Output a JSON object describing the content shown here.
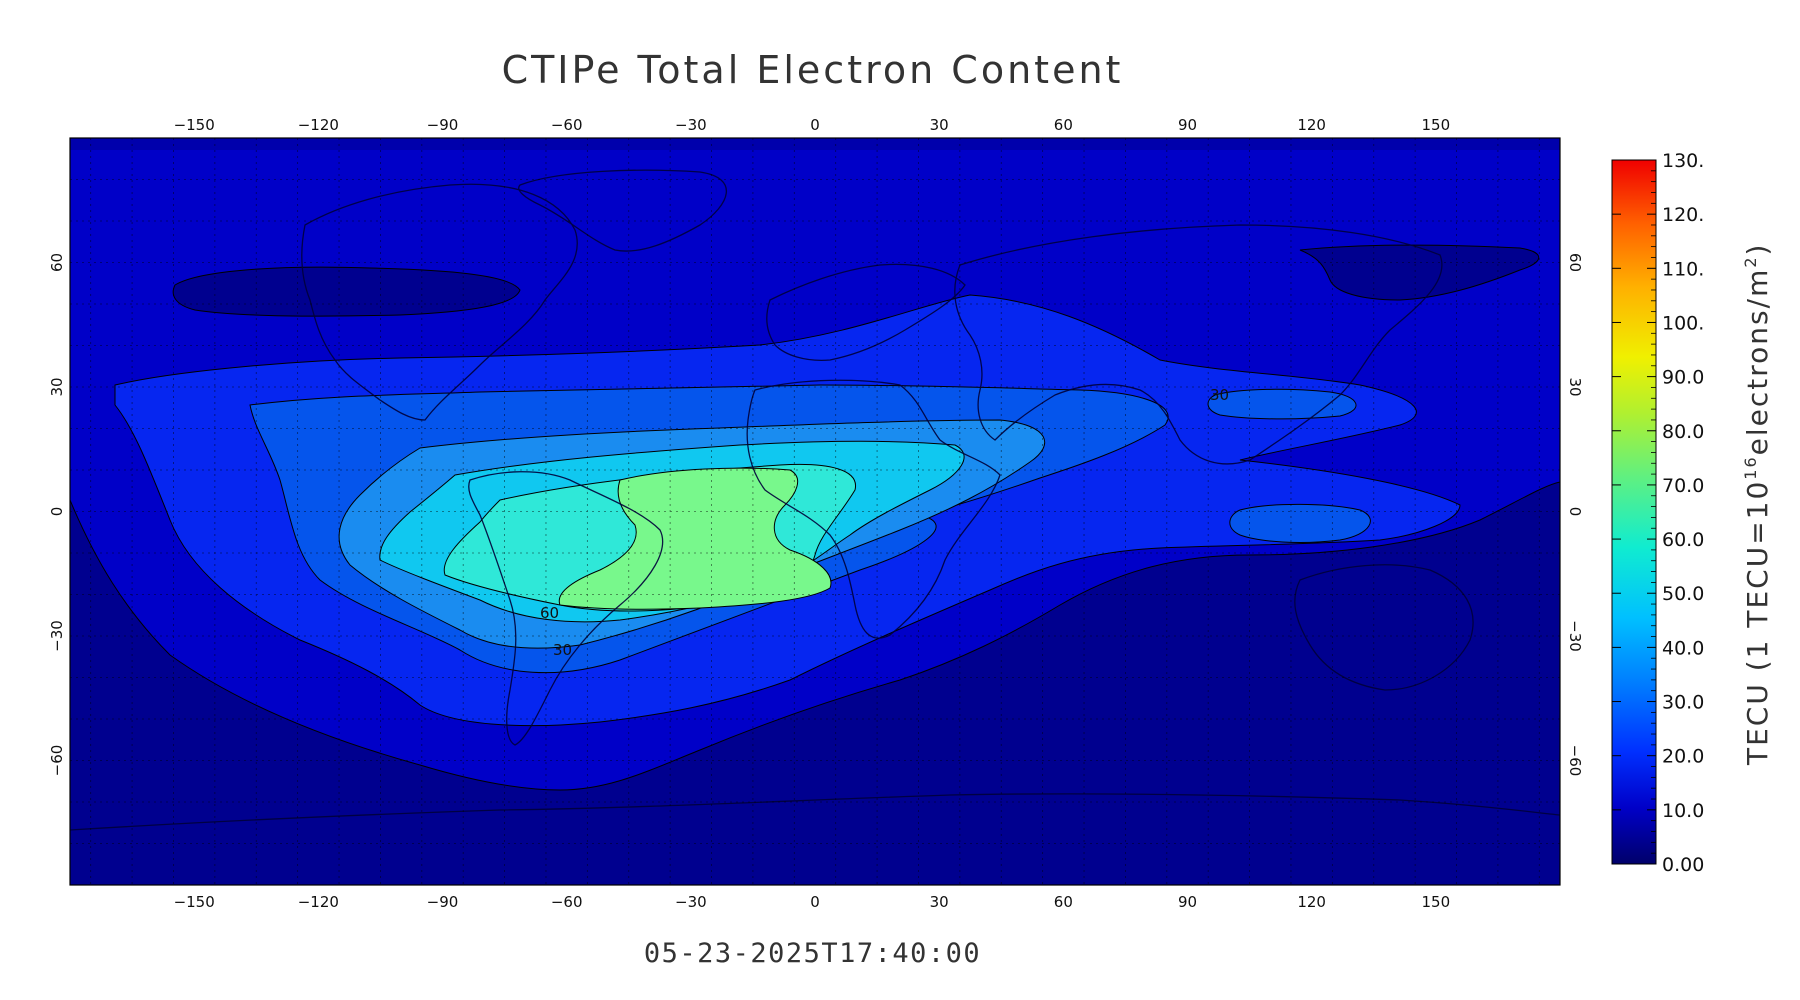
{
  "title": "CTIPe Total Electron Content",
  "timestamp": "05-23-2025T17:40:00",
  "colorbar": {
    "label": "TECU (1 TECU=10",
    "label_exp": "16",
    "label_tail": "electrons/m",
    "label_exp2": "2",
    "label_close": ")",
    "ticks": [
      "130.",
      "120.",
      "110.",
      "100.",
      "90.0",
      "80.0",
      "70.0",
      "60.0",
      "50.0",
      "40.0",
      "30.0",
      "20.0",
      "10.0",
      "0.00"
    ],
    "range": [
      0,
      130
    ]
  },
  "map": {
    "lon_ticks": [
      "-150",
      "-120",
      "-90",
      "-60",
      "-30",
      "0",
      "30",
      "60",
      "90",
      "120",
      "150"
    ],
    "lat_ticks": [
      "60",
      "30",
      "0",
      "-30",
      "-60"
    ],
    "lon_range": [
      -180,
      180
    ],
    "lat_range": [
      -90,
      90
    ],
    "contour_labels": [
      "60",
      "30",
      "30"
    ],
    "fill_colors": [
      "#00008f",
      "#0000c8",
      "#0626f0",
      "#0555ec",
      "#1a8cf0",
      "#10c8f0",
      "#2fe8d8",
      "#5ff0b4",
      "#78f88c"
    ]
  }
}
